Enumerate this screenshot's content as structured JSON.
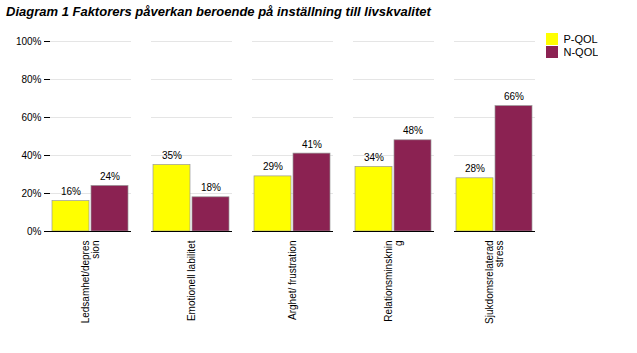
{
  "chart_data": {
    "type": "bar",
    "title": "Diagram 1 Faktorers påverkan beroende på inställning till livskvalitet",
    "categories": [
      "Ledsamhet/depres\nsion",
      "Emotionell labilitet",
      "Arghet/ frustration",
      "Relationsminsknin\ng",
      "Sjukdomsrelaterad\nstress"
    ],
    "series": [
      {
        "name": "P-QOL",
        "color": "#FFFF00",
        "values": [
          16,
          35,
          29,
          34,
          28
        ],
        "value_labels": [
          "16%",
          "35%",
          "29%",
          "34%",
          "28%"
        ]
      },
      {
        "name": "N-QOL",
        "color": "#8B2252",
        "values": [
          24,
          18,
          41,
          48,
          66
        ],
        "value_labels": [
          "24%",
          "18%",
          "41%",
          "48%",
          "66%"
        ]
      }
    ],
    "ylim": [
      0,
      100
    ],
    "yticks": [
      {
        "value": 0,
        "label": "0%"
      },
      {
        "value": 20,
        "label": "20%"
      },
      {
        "value": 40,
        "label": "40%"
      },
      {
        "value": 60,
        "label": "60%"
      },
      {
        "value": 80,
        "label": "80%"
      },
      {
        "value": 100,
        "label": "100%"
      }
    ],
    "grid": true,
    "data_labels": true,
    "legend": "right"
  }
}
